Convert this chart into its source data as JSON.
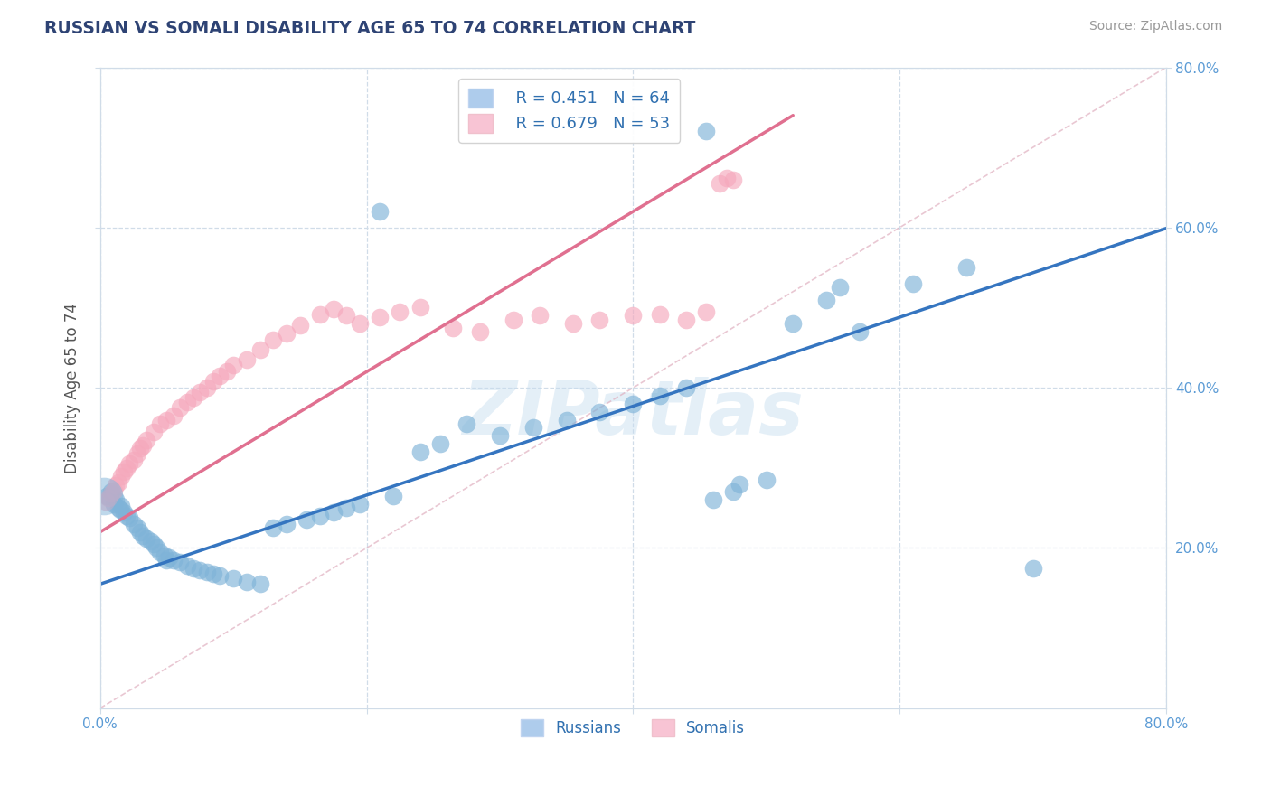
{
  "title": "RUSSIAN VS SOMALI DISABILITY AGE 65 TO 74 CORRELATION CHART",
  "source_text": "Source: ZipAtlas.com",
  "ylabel": "Disability Age 65 to 74",
  "xlim": [
    0.0,
    0.8
  ],
  "ylim": [
    0.0,
    0.8
  ],
  "xtick_values": [
    0.0,
    0.2,
    0.4,
    0.6,
    0.8
  ],
  "xtick_labels": [
    "0.0%",
    "",
    "",
    "",
    "80.0%"
  ],
  "ytick_values": [
    0.2,
    0.4,
    0.6,
    0.8
  ],
  "ytick_labels_right": [
    "20.0%",
    "40.0%",
    "60.0%",
    "80.0%"
  ],
  "russian_color": "#7fb3d8",
  "somali_color": "#f5a8bc",
  "russian_line_color": "#3575c0",
  "somali_line_color": "#e07090",
  "diag_line_color": "#e0b0c0",
  "russian_R": 0.451,
  "russian_N": 64,
  "somali_R": 0.679,
  "somali_N": 53,
  "watermark": "ZIPatlas",
  "title_color": "#2e4374",
  "ylabel_color": "#555555",
  "tick_color": "#5b9bd5",
  "background_color": "#ffffff",
  "grid_color": "#d0dce8",
  "russian_line_intercept": 0.155,
  "russian_line_slope": 0.555,
  "somali_line_intercept": 0.22,
  "somali_line_slope": 1.0,
  "somali_line_xmax": 0.52,
  "rus_x": [
    0.005,
    0.008,
    0.01,
    0.012,
    0.014,
    0.015,
    0.016,
    0.018,
    0.02,
    0.022,
    0.025,
    0.028,
    0.03,
    0.032,
    0.035,
    0.038,
    0.04,
    0.042,
    0.045,
    0.048,
    0.05,
    0.052,
    0.055,
    0.06,
    0.065,
    0.07,
    0.075,
    0.08,
    0.085,
    0.09,
    0.1,
    0.11,
    0.12,
    0.13,
    0.14,
    0.155,
    0.165,
    0.175,
    0.185,
    0.195,
    0.21,
    0.22,
    0.24,
    0.255,
    0.275,
    0.3,
    0.325,
    0.35,
    0.375,
    0.4,
    0.42,
    0.44,
    0.455,
    0.46,
    0.475,
    0.48,
    0.5,
    0.52,
    0.545,
    0.555,
    0.57,
    0.61,
    0.65,
    0.7
  ],
  "rus_y": [
    0.265,
    0.27,
    0.255,
    0.26,
    0.25,
    0.248,
    0.252,
    0.245,
    0.24,
    0.238,
    0.23,
    0.225,
    0.22,
    0.215,
    0.212,
    0.208,
    0.205,
    0.2,
    0.195,
    0.19,
    0.185,
    0.188,
    0.185,
    0.182,
    0.178,
    0.175,
    0.172,
    0.17,
    0.168,
    0.165,
    0.162,
    0.158,
    0.155,
    0.225,
    0.23,
    0.235,
    0.24,
    0.245,
    0.25,
    0.255,
    0.62,
    0.265,
    0.32,
    0.33,
    0.355,
    0.34,
    0.35,
    0.36,
    0.37,
    0.38,
    0.39,
    0.4,
    0.72,
    0.26,
    0.27,
    0.28,
    0.285,
    0.48,
    0.51,
    0.525,
    0.47,
    0.53,
    0.55,
    0.175
  ],
  "som_x": [
    0.004,
    0.006,
    0.008,
    0.01,
    0.012,
    0.014,
    0.016,
    0.018,
    0.02,
    0.022,
    0.025,
    0.028,
    0.03,
    0.032,
    0.035,
    0.04,
    0.045,
    0.05,
    0.055,
    0.06,
    0.065,
    0.07,
    0.075,
    0.08,
    0.085,
    0.09,
    0.095,
    0.1,
    0.11,
    0.12,
    0.13,
    0.14,
    0.15,
    0.165,
    0.175,
    0.185,
    0.195,
    0.21,
    0.225,
    0.24,
    0.265,
    0.285,
    0.31,
    0.33,
    0.355,
    0.375,
    0.4,
    0.42,
    0.44,
    0.455,
    0.465,
    0.47,
    0.475
  ],
  "som_y": [
    0.258,
    0.262,
    0.268,
    0.272,
    0.278,
    0.282,
    0.29,
    0.295,
    0.3,
    0.305,
    0.31,
    0.318,
    0.325,
    0.328,
    0.335,
    0.345,
    0.355,
    0.36,
    0.365,
    0.375,
    0.382,
    0.388,
    0.395,
    0.4,
    0.408,
    0.415,
    0.42,
    0.428,
    0.435,
    0.448,
    0.46,
    0.468,
    0.478,
    0.492,
    0.498,
    0.49,
    0.48,
    0.488,
    0.495,
    0.5,
    0.475,
    0.47,
    0.485,
    0.49,
    0.48,
    0.485,
    0.49,
    0.492,
    0.485,
    0.495,
    0.655,
    0.662,
    0.66
  ]
}
